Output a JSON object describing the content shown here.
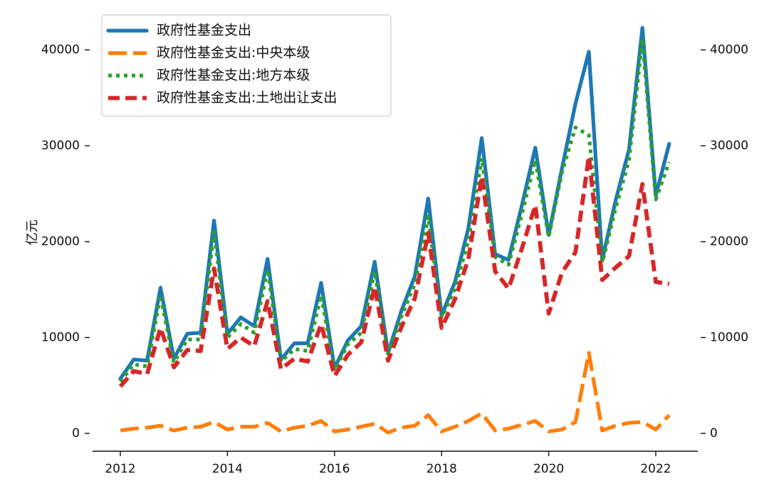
{
  "chart_data": {
    "type": "line",
    "ylabel": "亿元",
    "xlim": [
      2011.4,
      2023.2
    ],
    "ylim": [
      -1900,
      44500
    ],
    "x_ticks": [
      2012,
      2014,
      2016,
      2018,
      2020,
      2022
    ],
    "y_ticks": [
      0,
      10000,
      20000,
      30000,
      40000
    ],
    "grid": false,
    "legend_position": "top-left",
    "x": [
      2012.0,
      2012.25,
      2012.5,
      2012.75,
      2013.0,
      2013.25,
      2013.5,
      2013.75,
      2014.0,
      2014.25,
      2014.5,
      2014.75,
      2015.0,
      2015.25,
      2015.5,
      2015.75,
      2016.0,
      2016.25,
      2016.5,
      2016.75,
      2017.0,
      2017.25,
      2017.5,
      2017.75,
      2018.0,
      2018.25,
      2018.5,
      2018.75,
      2019.0,
      2019.25,
      2019.5,
      2019.75,
      2020.0,
      2020.25,
      2020.5,
      2020.75,
      2021.0,
      2021.25,
      2021.5,
      2021.75,
      2022.0,
      2022.25
    ],
    "series": [
      {
        "name": "政府性基金支出",
        "color": "#1f77b4",
        "dash": "solid",
        "values": [
          5700,
          7700,
          7600,
          15200,
          7800,
          10400,
          10500,
          22200,
          10400,
          12100,
          11200,
          18200,
          7700,
          9400,
          9400,
          15700,
          6800,
          9700,
          11200,
          17900,
          8400,
          12800,
          16400,
          24500,
          12300,
          15800,
          21400,
          30800,
          18700,
          18100,
          23800,
          29800,
          20700,
          27700,
          34400,
          39800,
          18100,
          24300,
          29600,
          42300,
          24800,
          30200
        ]
      },
      {
        "name": "政府性基金支出:中央本级",
        "color": "#ff7f0e",
        "dash": "longdash",
        "values": [
          300,
          500,
          600,
          800,
          300,
          600,
          700,
          1200,
          400,
          700,
          700,
          1100,
          200,
          600,
          800,
          1300,
          200,
          400,
          700,
          1000,
          100,
          600,
          800,
          1900,
          200,
          700,
          1300,
          2100,
          300,
          500,
          900,
          1300,
          200,
          400,
          1200,
          8400,
          300,
          800,
          1100,
          1200,
          400,
          1900
        ]
      },
      {
        "name": "政府性基金支出:地方本级",
        "color": "#2ca02c",
        "dash": "dotted",
        "values": [
          5400,
          7200,
          7000,
          14400,
          7400,
          9800,
          9800,
          21000,
          10000,
          11400,
          10500,
          17100,
          7500,
          8800,
          8600,
          14400,
          6600,
          9300,
          10500,
          16900,
          8300,
          12200,
          15600,
          22600,
          12100,
          15100,
          20100,
          28700,
          18400,
          17600,
          22900,
          28500,
          20500,
          27300,
          31900,
          31100,
          17800,
          23500,
          28500,
          41100,
          24400,
          28300
        ]
      },
      {
        "name": "政府性基金支出:土地出让支出",
        "color": "#d62728",
        "dash": "dashed",
        "values": [
          4900,
          6500,
          6200,
          11000,
          6900,
          8700,
          8600,
          17200,
          8800,
          10000,
          9100,
          13800,
          6700,
          7800,
          7500,
          11400,
          6000,
          8200,
          9500,
          15300,
          7600,
          11100,
          14100,
          20900,
          11000,
          14000,
          18200,
          26800,
          16900,
          15100,
          19300,
          23800,
          12500,
          16800,
          18900,
          28900,
          16000,
          17300,
          18500,
          26000,
          15800,
          15600
        ]
      }
    ]
  }
}
